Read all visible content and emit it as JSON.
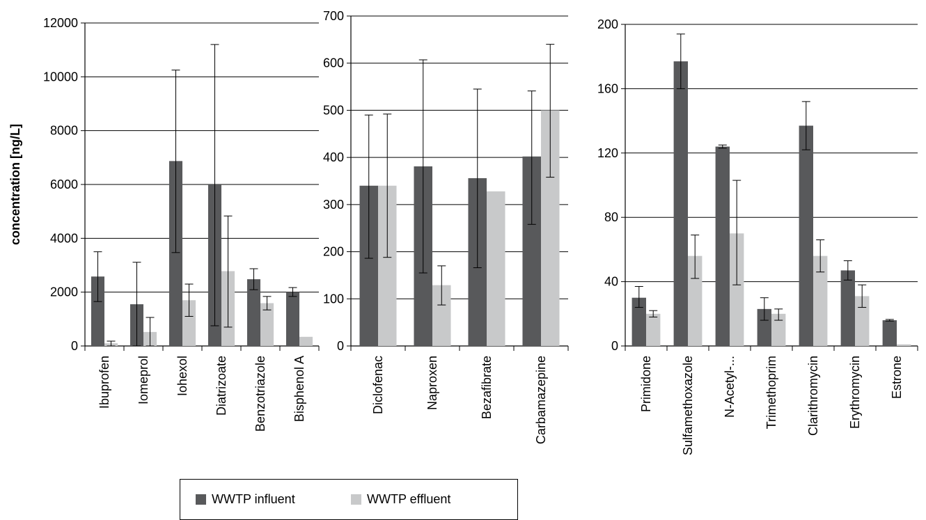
{
  "chart_data": [
    {
      "type": "bar",
      "ylabel": "concentration [ng/L]",
      "ylim": [
        0,
        12000
      ],
      "yticks": [
        0,
        2000,
        4000,
        6000,
        8000,
        10000,
        12000
      ],
      "categories": [
        "Ibuprofen",
        "Iomeprol",
        "Iohexol",
        "Diatrizoate",
        "Benzotriazole",
        "Bisphenol A"
      ],
      "series": [
        {
          "name": "WWTP influent",
          "values": [
            2580,
            1550,
            6870,
            6000,
            2480,
            2000
          ],
          "error_low": [
            1650,
            0,
            3470,
            750,
            2090,
            1840
          ],
          "error_high": [
            3500,
            3110,
            10250,
            11200,
            2870,
            2170
          ]
        },
        {
          "name": "WWTP effluent",
          "values": [
            100,
            520,
            1700,
            2780,
            1590,
            340
          ],
          "error_low": [
            0,
            0,
            1100,
            700,
            1340,
            null
          ],
          "error_high": [
            180,
            1060,
            2300,
            4830,
            1840,
            null
          ]
        }
      ]
    },
    {
      "type": "bar",
      "ylabel": "",
      "ylim": [
        0,
        700
      ],
      "yticks": [
        0,
        100,
        200,
        300,
        400,
        500,
        600,
        700
      ],
      "categories": [
        "Diclofenac",
        "Naproxen",
        "Bezafibrate",
        "Carbamazepine"
      ],
      "series": [
        {
          "name": "WWTP influent",
          "values": [
            340,
            381,
            356,
            402
          ],
          "error_low": [
            186,
            155,
            166,
            258
          ],
          "error_high": [
            490,
            607,
            545,
            541
          ]
        },
        {
          "name": "WWTP effluent",
          "values": [
            340,
            129,
            328,
            500
          ],
          "error_low": [
            188,
            87,
            null,
            358
          ],
          "error_high": [
            492,
            170,
            null,
            640
          ]
        }
      ]
    },
    {
      "type": "bar",
      "ylabel": "",
      "ylim": [
        0,
        200
      ],
      "yticks": [
        0,
        40,
        80,
        120,
        160,
        200
      ],
      "categories": [
        "Primidone",
        "Sulfamethoxazole",
        "N-Acetyl-...",
        "Trimethoprim",
        "Clarithromycin",
        "Erythromycin",
        "Estrone"
      ],
      "series": [
        {
          "name": "WWTP influent",
          "values": [
            30,
            177,
            124,
            23,
            137,
            47,
            16
          ],
          "error_low": [
            24,
            160,
            123,
            16,
            122,
            41,
            15.5
          ],
          "error_high": [
            37,
            194,
            125,
            30,
            152,
            53,
            16.5
          ]
        },
        {
          "name": "WWTP effluent",
          "values": [
            20,
            56,
            70,
            20,
            56,
            31,
            1
          ],
          "error_low": [
            18,
            42,
            38,
            16,
            46,
            24,
            null
          ],
          "error_high": [
            22,
            69,
            103,
            23,
            66,
            38,
            null
          ]
        }
      ]
    }
  ],
  "legend": {
    "items": [
      {
        "label": "WWTP influent",
        "color": "#58595b"
      },
      {
        "label": "WWTP effluent",
        "color": "#c8c9ca"
      }
    ]
  }
}
